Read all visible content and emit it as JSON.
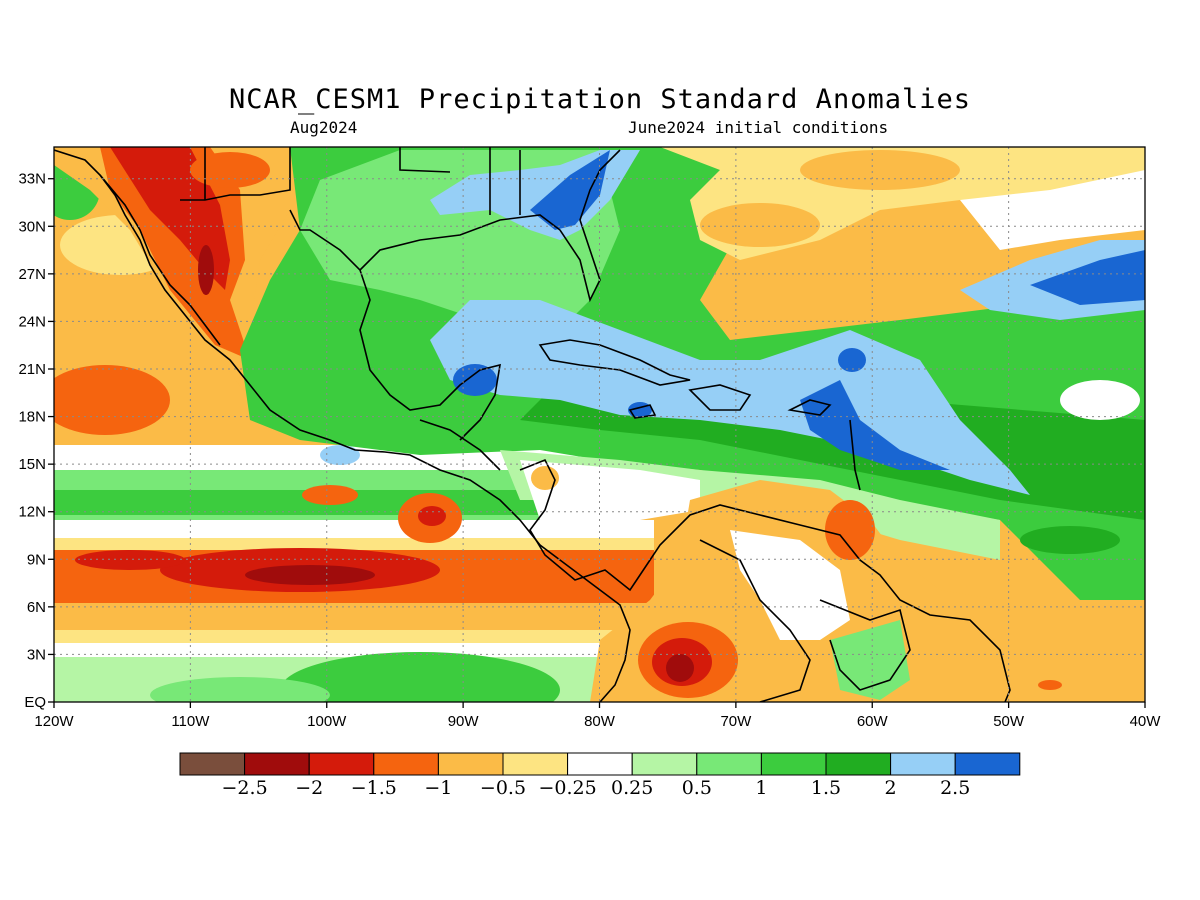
{
  "title": "NCAR_CESM1 Precipitation Standard Anomalies",
  "subtitle_left": "Aug2024",
  "subtitle_right": "June2024 initial conditions",
  "map": {
    "lon_range": [
      -120,
      -40
    ],
    "lat_range": [
      0,
      35
    ],
    "x_ticks": [
      "120W",
      "110W",
      "100W",
      "90W",
      "80W",
      "70W",
      "60W",
      "50W",
      "40W"
    ],
    "y_ticks": [
      "EQ",
      "3N",
      "6N",
      "9N",
      "12N",
      "15N",
      "18N",
      "21N",
      "24N",
      "27N",
      "30N",
      "33N"
    ],
    "grid": "dotted"
  },
  "colorbar": {
    "colors": [
      "#7a4e3c",
      "#a00c0c",
      "#d41b0b",
      "#f5640f",
      "#fbbb47",
      "#fde482",
      "#ffffff",
      "#b5f5a5",
      "#78e877",
      "#3ccc3e",
      "#21ad21",
      "#96cff6",
      "#1966d2"
    ],
    "labels": [
      "−2.5",
      "−2",
      "−1.5",
      "−1",
      "−0.5",
      "−0.25",
      "0.25",
      "0.5",
      "1",
      "1.5",
      "2",
      "2.5"
    ]
  }
}
